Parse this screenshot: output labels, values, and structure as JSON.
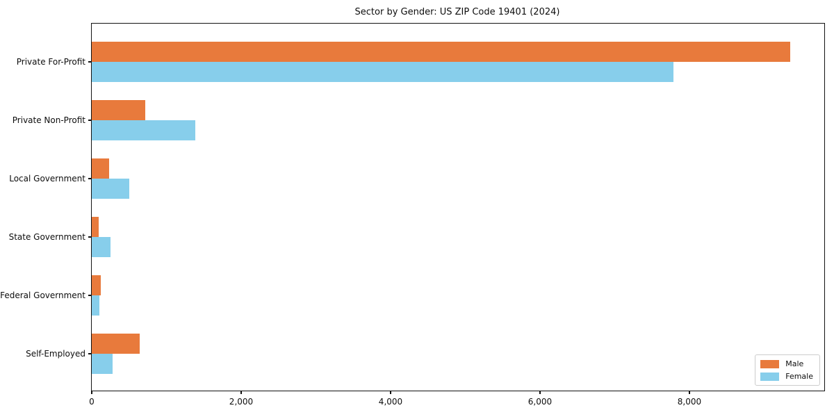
{
  "chart_data": {
    "type": "bar",
    "orientation": "horizontal",
    "title": "Sector by Gender: US ZIP Code 19401 (2024)",
    "categories": [
      "Private For-Profit",
      "Private Non-Profit",
      "Local Government",
      "State Government",
      "Federal Government",
      "Self-Employed"
    ],
    "series": [
      {
        "name": "Male",
        "color": "#e87a3c",
        "values": [
          9350,
          720,
          230,
          90,
          125,
          640
        ]
      },
      {
        "name": "Female",
        "color": "#87ceeb",
        "values": [
          7790,
          1390,
          500,
          250,
          100,
          275
        ]
      }
    ],
    "xlim": [
      0,
      9805
    ],
    "xticks": [
      0,
      2000,
      4000,
      6000,
      8000
    ],
    "xtick_labels": [
      "0",
      "2,000",
      "4,000",
      "6,000",
      "8,000"
    ],
    "xlabel": "",
    "ylabel": "",
    "grid": false,
    "legend_position": "lower right"
  }
}
